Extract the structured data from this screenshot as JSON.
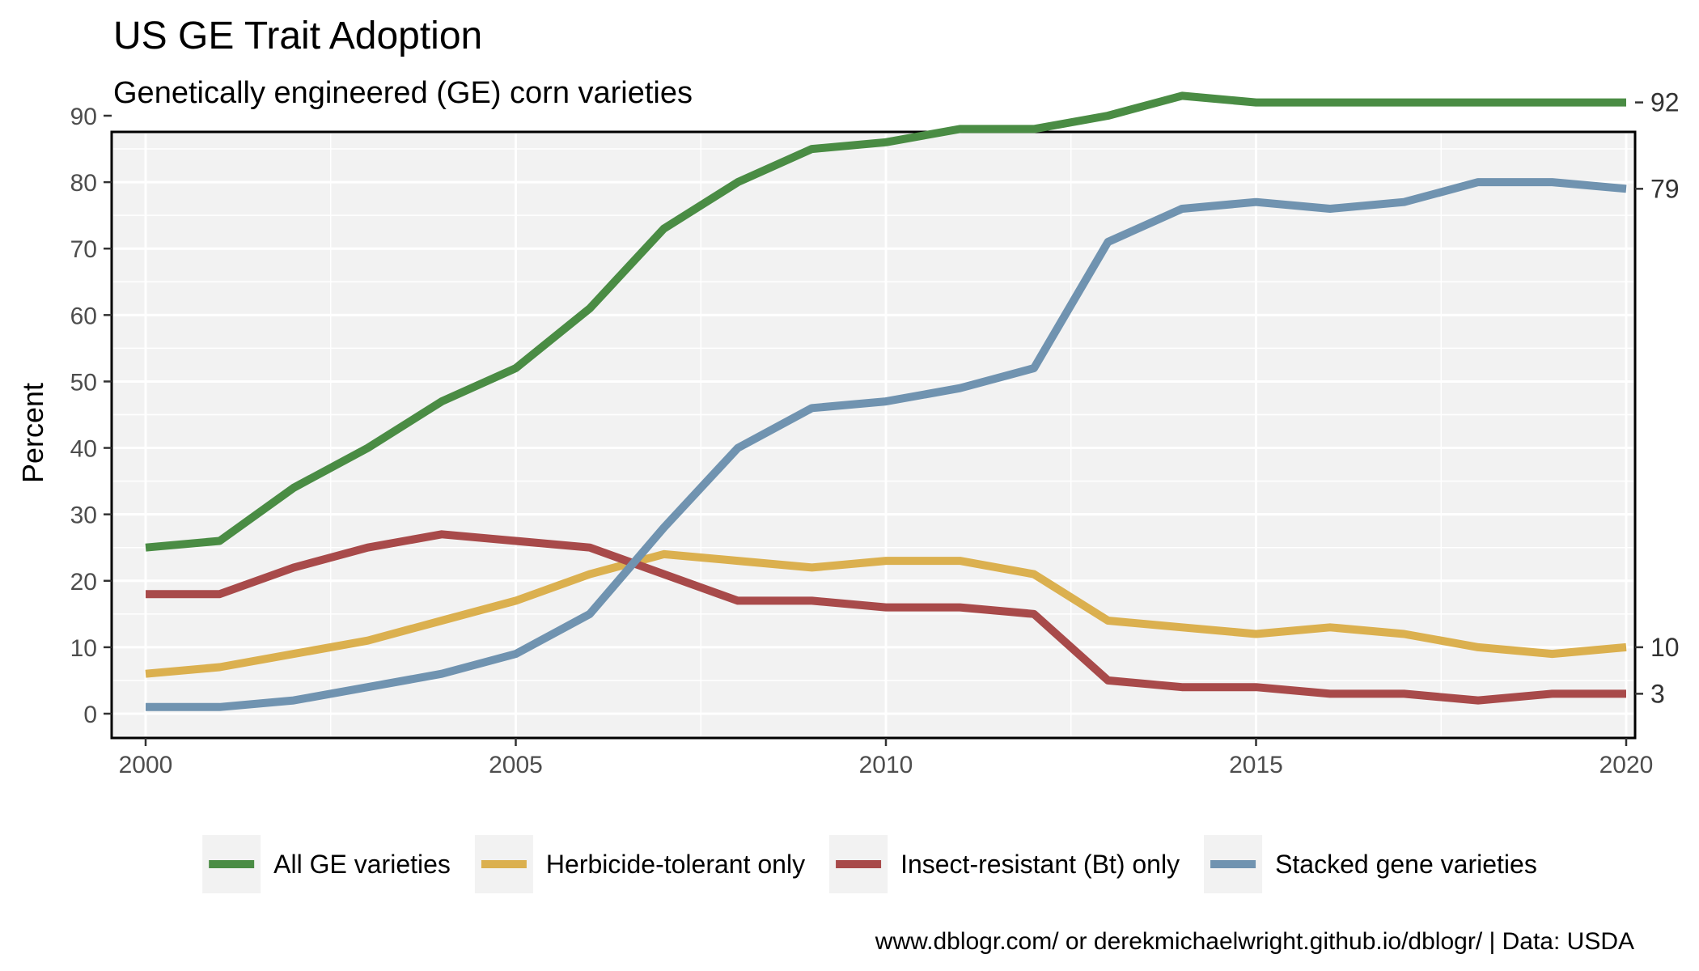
{
  "chart_data": {
    "type": "line",
    "title": "US GE Trait Adoption",
    "subtitle": "Genetically engineered (GE) corn varieties",
    "xlabel": "",
    "ylabel": "Percent",
    "caption": "www.dblogr.com/ or derekmichaelwright.github.io/dblogr/ | Data: USDA",
    "x": [
      2000,
      2001,
      2002,
      2003,
      2004,
      2005,
      2006,
      2007,
      2008,
      2009,
      2010,
      2011,
      2012,
      2013,
      2014,
      2015,
      2016,
      2017,
      2018,
      2019,
      2020
    ],
    "xlim": [
      2000,
      2020
    ],
    "ylim": [
      0,
      97
    ],
    "x_ticks": [
      2000,
      2005,
      2010,
      2015,
      2020
    ],
    "y_ticks": [
      0,
      10,
      20,
      30,
      40,
      50,
      60,
      70,
      80,
      90
    ],
    "grid": true,
    "legend_position": "bottom",
    "series": [
      {
        "name": "All GE varieties",
        "color": "#4a8c44",
        "values": [
          25,
          26,
          34,
          40,
          47,
          52,
          61,
          73,
          80,
          85,
          86,
          88,
          88,
          90,
          93,
          92,
          92,
          92,
          92,
          92,
          92
        ],
        "end_label": "92"
      },
      {
        "name": "Herbicide-tolerant only",
        "color": "#dbb04f",
        "values": [
          6,
          7,
          9,
          11,
          14,
          17,
          21,
          24,
          23,
          22,
          23,
          23,
          21,
          14,
          13,
          12,
          13,
          12,
          10,
          9,
          10
        ],
        "end_label": "10"
      },
      {
        "name": "Insect-resistant (Bt) only",
        "color": "#a84a4a",
        "values": [
          18,
          18,
          22,
          25,
          27,
          26,
          25,
          21,
          17,
          17,
          16,
          16,
          15,
          5,
          4,
          4,
          3,
          3,
          2,
          3,
          3
        ],
        "end_label": "3"
      },
      {
        "name": "Stacked gene varieties",
        "color": "#7093b0",
        "values": [
          1,
          1,
          2,
          4,
          6,
          9,
          15,
          28,
          40,
          46,
          47,
          49,
          52,
          71,
          76,
          77,
          76,
          77,
          80,
          80,
          79
        ],
        "end_label": "79"
      }
    ]
  }
}
